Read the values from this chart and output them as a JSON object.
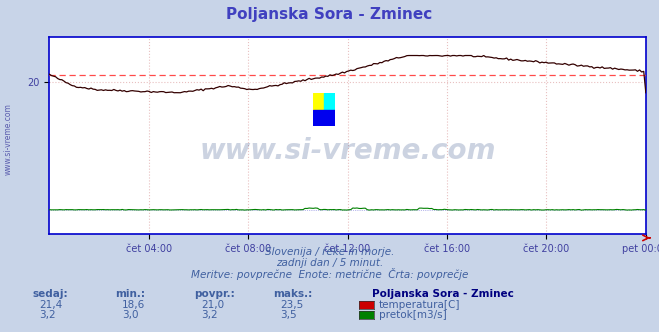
{
  "title": "Poljanska Sora - Zminec",
  "title_color": "#4040c0",
  "bg_color": "#c8d4e8",
  "plot_bg_color": "#ffffff",
  "plot_border_color": "#0000cc",
  "grid_color": "#e8c0c0",
  "grid_style": ":",
  "watermark_text": "www.si-vreme.com",
  "watermark_color": "#1a3a7a",
  "watermark_alpha": 0.22,
  "xlabel_color": "#4040a0",
  "xtick_labels": [
    "čet 04:00",
    "čet 08:00",
    "čet 12:00",
    "čet 16:00",
    "čet 20:00",
    "pet 00:00"
  ],
  "ylim": [
    0,
    26
  ],
  "ytick_vals": [
    20
  ],
  "ytick_labels": [
    "20"
  ],
  "ylabel_rotated": "www.si-vreme.com",
  "footer_line1": "Slovenija / reke in morje.",
  "footer_line2": "zadnji dan / 5 minut.",
  "footer_line3": "Meritve: povprečne  Enote: metrične  Črta: povprečje",
  "footer_color": "#4060a0",
  "legend_title": "Poljanska Sora - Zminec",
  "legend_title_color": "#000080",
  "stat_headers": [
    "sedaj:",
    "min.:",
    "povpr.:",
    "maks.:"
  ],
  "stat_values_temp": [
    "21,4",
    "18,6",
    "21,0",
    "23,5"
  ],
  "stat_values_flow": [
    "3,2",
    "3,0",
    "3,2",
    "3,5"
  ],
  "stat_color": "#4060a0",
  "temp_color": "#cc0000",
  "flow_color": "#008000",
  "avg_line_color": "#ff4040",
  "avg_temp": 21.0,
  "temp_min": 18.6,
  "temp_max": 23.5,
  "flow_nominal": 3.2,
  "flow_min": 3.0,
  "flow_max": 3.5,
  "logo_yellow": "#ffff00",
  "logo_cyan": "#00ffff",
  "logo_blue": "#0000ee"
}
